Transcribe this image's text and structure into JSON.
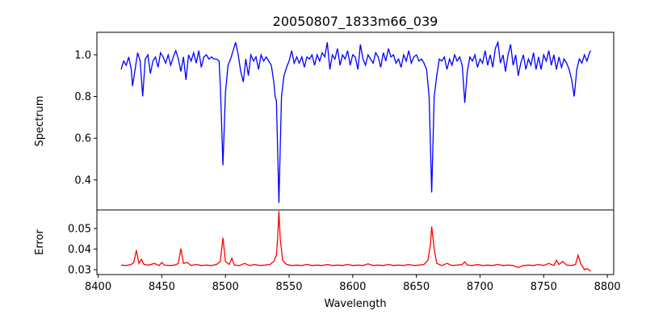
{
  "chart_data": [
    {
      "type": "line",
      "title": "20050807_1833m66_039",
      "xlabel": "",
      "ylabel": "Spectrum",
      "xlim": [
        8399,
        8805
      ],
      "ylim": [
        0.256,
        1.108
      ],
      "yticks": [
        0.4,
        0.6,
        0.8,
        1.0
      ],
      "ytick_labels": [
        "0.4",
        "0.6",
        "0.8",
        "1.0"
      ],
      "color": "#0000ff",
      "points": [
        [
          8418,
          0.93
        ],
        [
          8420,
          0.97
        ],
        [
          8422,
          0.95
        ],
        [
          8424,
          0.99
        ],
        [
          8426,
          0.93
        ],
        [
          8427,
          0.85
        ],
        [
          8429,
          0.93
        ],
        [
          8431,
          1.01
        ],
        [
          8433,
          0.97
        ],
        [
          8435,
          0.8
        ],
        [
          8437,
          0.98
        ],
        [
          8439,
          1.0
        ],
        [
          8441,
          0.91
        ],
        [
          8443,
          0.97
        ],
        [
          8445,
          0.99
        ],
        [
          8447,
          0.94
        ],
        [
          8449,
          1.01
        ],
        [
          8451,
          0.99
        ],
        [
          8453,
          0.96
        ],
        [
          8455,
          1.0
        ],
        [
          8457,
          0.95
        ],
        [
          8459,
          0.99
        ],
        [
          8461,
          1.02
        ],
        [
          8463,
          0.98
        ],
        [
          8465,
          0.92
        ],
        [
          8467,
          0.99
        ],
        [
          8469,
          0.88
        ],
        [
          8471,
          1.0
        ],
        [
          8473,
          0.97
        ],
        [
          8475,
          1.01
        ],
        [
          8477,
          0.96
        ],
        [
          8479,
          1.02
        ],
        [
          8481,
          0.94
        ],
        [
          8483,
          0.99
        ],
        [
          8485,
          1.0
        ],
        [
          8487,
          0.98
        ],
        [
          8489,
          0.99
        ],
        [
          8491,
          0.98
        ],
        [
          8493,
          0.98
        ],
        [
          8495,
          0.97
        ],
        [
          8496,
          0.85
        ],
        [
          8498,
          0.47
        ],
        [
          8500,
          0.82
        ],
        [
          8502,
          0.95
        ],
        [
          8504,
          0.98
        ],
        [
          8506,
          1.02
        ],
        [
          8508,
          1.06
        ],
        [
          8510,
          1.0
        ],
        [
          8512,
          0.92
        ],
        [
          8514,
          0.87
        ],
        [
          8516,
          0.98
        ],
        [
          8518,
          0.9
        ],
        [
          8520,
          1.0
        ],
        [
          8522,
          0.97
        ],
        [
          8524,
          0.99
        ],
        [
          8526,
          0.93
        ],
        [
          8528,
          1.0
        ],
        [
          8530,
          0.97
        ],
        [
          8532,
          0.99
        ],
        [
          8534,
          0.97
        ],
        [
          8536,
          0.95
        ],
        [
          8538,
          0.87
        ],
        [
          8539,
          0.8
        ],
        [
          8540,
          0.78
        ],
        [
          8541,
          0.55
        ],
        [
          8542,
          0.29
        ],
        [
          8543,
          0.55
        ],
        [
          8544,
          0.8
        ],
        [
          8546,
          0.9
        ],
        [
          8548,
          0.94
        ],
        [
          8550,
          0.97
        ],
        [
          8552,
          1.02
        ],
        [
          8554,
          0.96
        ],
        [
          8556,
          0.99
        ],
        [
          8558,
          0.96
        ],
        [
          8560,
          0.99
        ],
        [
          8562,
          0.94
        ],
        [
          8564,
          0.99
        ],
        [
          8566,
          0.98
        ],
        [
          8568,
          1.0
        ],
        [
          8570,
          0.95
        ],
        [
          8572,
          1.0
        ],
        [
          8574,
          0.97
        ],
        [
          8576,
          1.01
        ],
        [
          8578,
          0.99
        ],
        [
          8580,
          1.06
        ],
        [
          8582,
          0.93
        ],
        [
          8584,
          1.0
        ],
        [
          8586,
          0.98
        ],
        [
          8588,
          1.03
        ],
        [
          8590,
          0.95
        ],
        [
          8592,
          1.0
        ],
        [
          8594,
          0.98
        ],
        [
          8596,
          1.02
        ],
        [
          8598,
          0.95
        ],
        [
          8600,
          1.0
        ],
        [
          8602,
          0.99
        ],
        [
          8604,
          0.93
        ],
        [
          8606,
          1.05
        ],
        [
          8608,
          0.98
        ],
        [
          8610,
          0.95
        ],
        [
          8612,
          1.0
        ],
        [
          8614,
          0.98
        ],
        [
          8616,
          0.96
        ],
        [
          8618,
          1.01
        ],
        [
          8620,
          0.99
        ],
        [
          8622,
          0.94
        ],
        [
          8624,
          1.01
        ],
        [
          8626,
          0.97
        ],
        [
          8628,
          1.03
        ],
        [
          8630,
          0.99
        ],
        [
          8632,
          1.0
        ],
        [
          8634,
          0.96
        ],
        [
          8636,
          0.98
        ],
        [
          8638,
          0.94
        ],
        [
          8640,
          1.0
        ],
        [
          8642,
          0.97
        ],
        [
          8644,
          1.02
        ],
        [
          8646,
          0.96
        ],
        [
          8648,
          0.99
        ],
        [
          8650,
          1.0
        ],
        [
          8652,
          0.97
        ],
        [
          8654,
          0.98
        ],
        [
          8656,
          0.96
        ],
        [
          8658,
          0.93
        ],
        [
          8660,
          0.8
        ],
        [
          8662,
          0.34
        ],
        [
          8664,
          0.8
        ],
        [
          8666,
          0.9
        ],
        [
          8668,
          0.98
        ],
        [
          8670,
          0.97
        ],
        [
          8672,
          0.99
        ],
        [
          8674,
          0.93
        ],
        [
          8676,
          0.98
        ],
        [
          8678,
          0.95
        ],
        [
          8680,
          1.0
        ],
        [
          8682,
          0.97
        ],
        [
          8684,
          0.99
        ],
        [
          8686,
          0.95
        ],
        [
          8688,
          0.77
        ],
        [
          8690,
          0.92
        ],
        [
          8692,
          0.99
        ],
        [
          8694,
          0.97
        ],
        [
          8696,
          1.0
        ],
        [
          8698,
          0.94
        ],
        [
          8700,
          0.98
        ],
        [
          8702,
          0.96
        ],
        [
          8704,
          1.02
        ],
        [
          8706,
          0.95
        ],
        [
          8708,
          1.0
        ],
        [
          8710,
          0.94
        ],
        [
          8712,
          1.03
        ],
        [
          8714,
          1.06
        ],
        [
          8716,
          0.96
        ],
        [
          8718,
          1.0
        ],
        [
          8720,
          0.92
        ],
        [
          8722,
          1.0
        ],
        [
          8724,
          1.05
        ],
        [
          8726,
          0.95
        ],
        [
          8728,
          1.0
        ],
        [
          8730,
          0.9
        ],
        [
          8732,
          0.96
        ],
        [
          8734,
          1.0
        ],
        [
          8736,
          0.93
        ],
        [
          8738,
          0.98
        ],
        [
          8740,
          0.95
        ],
        [
          8742,
          1.01
        ],
        [
          8744,
          0.93
        ],
        [
          8746,
          0.99
        ],
        [
          8748,
          0.93
        ],
        [
          8750,
          1.0
        ],
        [
          8752,
          0.97
        ],
        [
          8754,
          1.02
        ],
        [
          8756,
          0.95
        ],
        [
          8758,
          1.0
        ],
        [
          8760,
          0.93
        ],
        [
          8762,
          0.99
        ],
        [
          8764,
          0.94
        ],
        [
          8766,
          0.98
        ],
        [
          8768,
          0.96
        ],
        [
          8770,
          0.93
        ],
        [
          8772,
          0.88
        ],
        [
          8774,
          0.8
        ],
        [
          8776,
          0.93
        ],
        [
          8778,
          0.98
        ],
        [
          8780,
          0.96
        ],
        [
          8782,
          1.0
        ],
        [
          8784,
          0.97
        ],
        [
          8786,
          1.01
        ],
        [
          8787,
          1.02
        ]
      ]
    },
    {
      "type": "line",
      "xlabel": "Wavelength",
      "ylabel": "Error",
      "xlim": [
        8399,
        8805
      ],
      "ylim": [
        0.0276,
        0.059
      ],
      "yticks": [
        0.03,
        0.04,
        0.05
      ],
      "ytick_labels": [
        "0.03",
        "0.04",
        "0.05"
      ],
      "xticks": [
        8400,
        8450,
        8500,
        8550,
        8600,
        8650,
        8700,
        8750,
        8800
      ],
      "xtick_labels": [
        "8400",
        "8450",
        "8500",
        "8550",
        "8600",
        "8650",
        "8700",
        "8750",
        "8800"
      ],
      "color": "#ff0000",
      "points": [
        [
          8418,
          0.0322
        ],
        [
          8422,
          0.032
        ],
        [
          8426,
          0.0325
        ],
        [
          8428,
          0.0335
        ],
        [
          8430,
          0.0395
        ],
        [
          8432,
          0.033
        ],
        [
          8434,
          0.035
        ],
        [
          8436,
          0.0325
        ],
        [
          8440,
          0.0322
        ],
        [
          8444,
          0.033
        ],
        [
          8448,
          0.032
        ],
        [
          8450,
          0.0335
        ],
        [
          8452,
          0.0322
        ],
        [
          8456,
          0.032
        ],
        [
          8460,
          0.0322
        ],
        [
          8463,
          0.033
        ],
        [
          8465,
          0.0402
        ],
        [
          8467,
          0.033
        ],
        [
          8470,
          0.0335
        ],
        [
          8473,
          0.032
        ],
        [
          8477,
          0.0325
        ],
        [
          8481,
          0.032
        ],
        [
          8485,
          0.0322
        ],
        [
          8489,
          0.032
        ],
        [
          8493,
          0.0325
        ],
        [
          8496,
          0.034
        ],
        [
          8498,
          0.0455
        ],
        [
          8500,
          0.034
        ],
        [
          8503,
          0.0325
        ],
        [
          8505,
          0.0355
        ],
        [
          8507,
          0.0322
        ],
        [
          8511,
          0.032
        ],
        [
          8515,
          0.033
        ],
        [
          8519,
          0.032
        ],
        [
          8523,
          0.0325
        ],
        [
          8527,
          0.032
        ],
        [
          8531,
          0.0322
        ],
        [
          8535,
          0.0325
        ],
        [
          8538,
          0.034
        ],
        [
          8540,
          0.037
        ],
        [
          8541,
          0.045
        ],
        [
          8542,
          0.0585
        ],
        [
          8543,
          0.045
        ],
        [
          8545,
          0.0345
        ],
        [
          8548,
          0.0325
        ],
        [
          8552,
          0.032
        ],
        [
          8556,
          0.0322
        ],
        [
          8560,
          0.032
        ],
        [
          8564,
          0.0325
        ],
        [
          8568,
          0.032
        ],
        [
          8572,
          0.0322
        ],
        [
          8576,
          0.032
        ],
        [
          8580,
          0.0325
        ],
        [
          8584,
          0.032
        ],
        [
          8588,
          0.0322
        ],
        [
          8592,
          0.032
        ],
        [
          8596,
          0.0325
        ],
        [
          8600,
          0.032
        ],
        [
          8604,
          0.0322
        ],
        [
          8608,
          0.032
        ],
        [
          8612,
          0.0328
        ],
        [
          8616,
          0.032
        ],
        [
          8620,
          0.0322
        ],
        [
          8624,
          0.032
        ],
        [
          8628,
          0.0325
        ],
        [
          8632,
          0.032
        ],
        [
          8636,
          0.0322
        ],
        [
          8640,
          0.032
        ],
        [
          8644,
          0.0325
        ],
        [
          8648,
          0.032
        ],
        [
          8652,
          0.0322
        ],
        [
          8656,
          0.0325
        ],
        [
          8659,
          0.0345
        ],
        [
          8661,
          0.042
        ],
        [
          8662,
          0.051
        ],
        [
          8664,
          0.04
        ],
        [
          8666,
          0.033
        ],
        [
          8670,
          0.032
        ],
        [
          8674,
          0.033
        ],
        [
          8678,
          0.032
        ],
        [
          8682,
          0.0322
        ],
        [
          8686,
          0.0325
        ],
        [
          8688,
          0.0338
        ],
        [
          8690,
          0.0322
        ],
        [
          8694,
          0.032
        ],
        [
          8698,
          0.0325
        ],
        [
          8702,
          0.032
        ],
        [
          8706,
          0.0322
        ],
        [
          8710,
          0.032
        ],
        [
          8714,
          0.0325
        ],
        [
          8718,
          0.032
        ],
        [
          8722,
          0.0322
        ],
        [
          8726,
          0.032
        ],
        [
          8730,
          0.031
        ],
        [
          8734,
          0.032
        ],
        [
          8738,
          0.0322
        ],
        [
          8742,
          0.032
        ],
        [
          8746,
          0.0325
        ],
        [
          8750,
          0.032
        ],
        [
          8754,
          0.033
        ],
        [
          8758,
          0.032
        ],
        [
          8760,
          0.0345
        ],
        [
          8762,
          0.0325
        ],
        [
          8765,
          0.034
        ],
        [
          8768,
          0.0322
        ],
        [
          8772,
          0.032
        ],
        [
          8775,
          0.0325
        ],
        [
          8777,
          0.037
        ],
        [
          8779,
          0.033
        ],
        [
          8782,
          0.03
        ],
        [
          8784,
          0.0305
        ],
        [
          8787,
          0.0292
        ]
      ]
    }
  ]
}
